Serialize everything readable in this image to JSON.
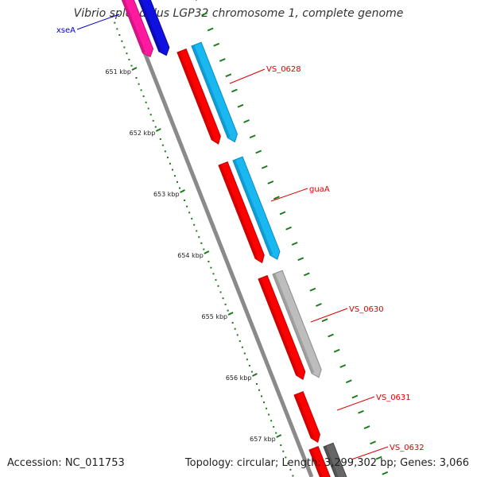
{
  "title": "Vibrio splendidus LGP32 chromosome 1, complete genome",
  "footer": {
    "accession": "Accession: NC_011753",
    "topology": "Topology: circular; Length: 3,299,302 bp; Genes: 3,066"
  },
  "colors": {
    "backbone": "#8a8a8a",
    "cds": "#ff0000",
    "cds_shade": "#c00000",
    "gene_blue": "#1ab8f0",
    "gene_gray": "#bdbdbd",
    "gene_magenta": "#ff1aa0",
    "gene_navy": "#1010e0",
    "tick": "#1a7a1a",
    "label_red": "#dd0000",
    "label_blue": "#0000cc"
  },
  "scale": {
    "tick_labels": [
      "651 kbp",
      "652 kbp",
      "653 kbp",
      "654 kbp",
      "655 kbp",
      "656 kbp",
      "657 kbp"
    ]
  },
  "genes": [
    {
      "label": "xseA",
      "label_color": "#0000cc"
    },
    {
      "label": "VS_0628",
      "label_color": "#dd0000"
    },
    {
      "label": "guaA",
      "label_color": "#dd0000"
    },
    {
      "label": "VS_0630",
      "label_color": "#dd0000"
    },
    {
      "label": "VS_0631",
      "label_color": "#dd0000"
    },
    {
      "label": "VS_0632",
      "label_color": "#dd0000"
    }
  ]
}
